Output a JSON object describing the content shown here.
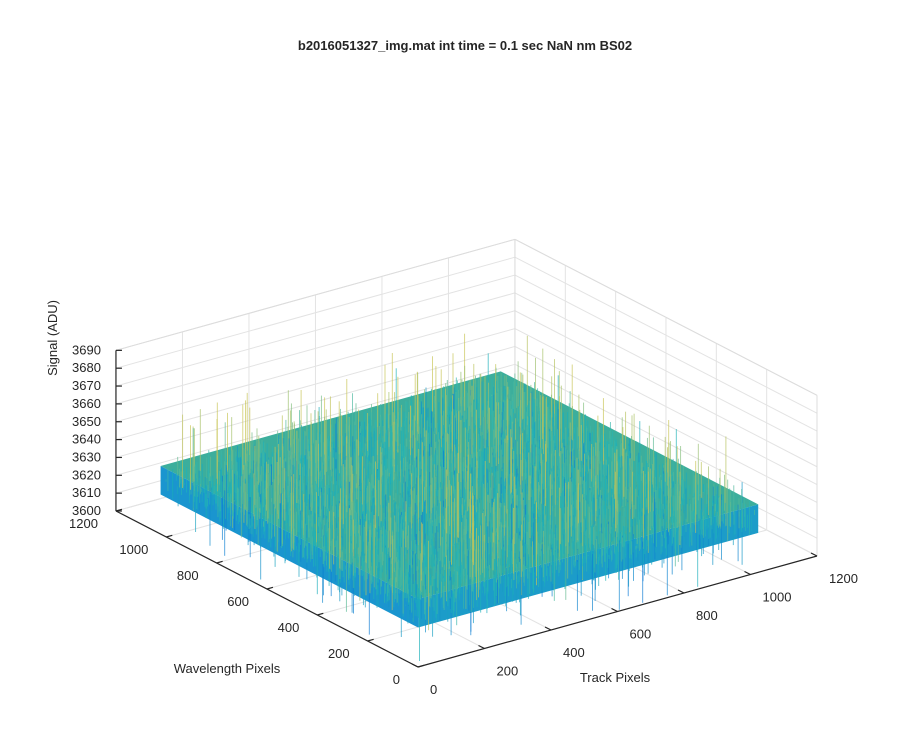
{
  "chart_data": {
    "type": "surface",
    "title": "b2016051327_img.mat int time = 0.1 sec  NaN nm BS02",
    "xlabel": "Track Pixels",
    "ylabel": "Wavelength Pixels",
    "zlabel": "Signal (ADU)",
    "xlim": [
      0,
      1200
    ],
    "ylim": [
      0,
      1200
    ],
    "zlim": [
      3600,
      3690
    ],
    "xticks": [
      "0",
      "200",
      "400",
      "600",
      "800",
      "1000",
      "1200"
    ],
    "yticks": [
      "0",
      "200",
      "400",
      "600",
      "800",
      "1000",
      "1200"
    ],
    "zticks": [
      "3600",
      "3610",
      "3620",
      "3630",
      "3640",
      "3650",
      "3660",
      "3670",
      "3680",
      "3690"
    ],
    "data_extent": {
      "x": [
        1,
        1024
      ],
      "y": [
        1,
        1024
      ]
    },
    "signal_mean": 3630,
    "signal_noise_range": [
      3600,
      3690
    ],
    "grid": true,
    "colormap": "parula",
    "colors": {
      "low": "#0a72d8",
      "mid": "#1fb3b8",
      "high": "#c8c455"
    }
  }
}
